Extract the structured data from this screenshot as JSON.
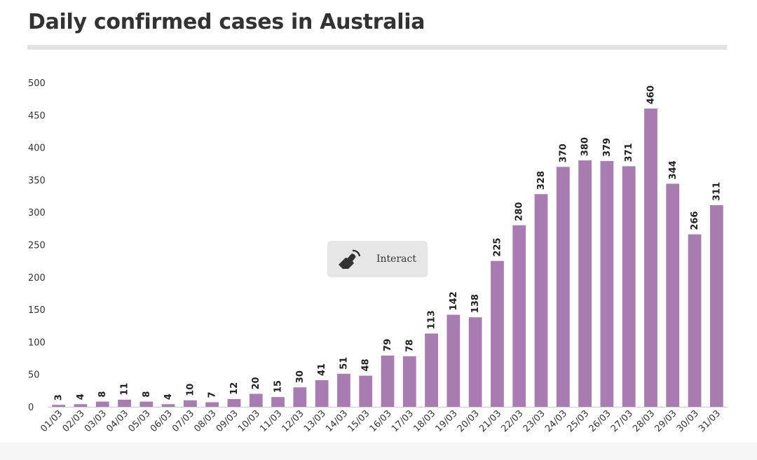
{
  "title": "Daily confirmed cases in Australia",
  "interact_label": "Interact",
  "colors": {
    "bar": "#a87cb0",
    "text": "#333333",
    "axis": "#cccccc"
  },
  "chart_data": {
    "type": "bar",
    "title": "Daily confirmed cases in Australia",
    "categories": [
      "01/03",
      "02/03",
      "03/03",
      "04/03",
      "05/03",
      "06/03",
      "07/03",
      "08/03",
      "09/03",
      "10/03",
      "11/03",
      "12/03",
      "13/03",
      "14/03",
      "15/03",
      "16/03",
      "17/03",
      "18/03",
      "19/03",
      "20/03",
      "21/03",
      "22/03",
      "23/03",
      "24/03",
      "25/03",
      "26/03",
      "27/03",
      "28/03",
      "29/03",
      "30/03",
      "31/03"
    ],
    "values": [
      3,
      4,
      8,
      11,
      8,
      4,
      10,
      7,
      12,
      20,
      15,
      30,
      41,
      51,
      48,
      79,
      78,
      113,
      142,
      138,
      225,
      280,
      328,
      370,
      380,
      379,
      371,
      460,
      344,
      266,
      311
    ],
    "ylim": [
      0,
      500
    ],
    "yticks": [
      "0",
      "50",
      "100",
      "150",
      "200",
      "250",
      "300",
      "350",
      "400",
      "450",
      "500"
    ],
    "xlabel": "",
    "ylabel": "",
    "grid": false,
    "data_labels": true
  }
}
